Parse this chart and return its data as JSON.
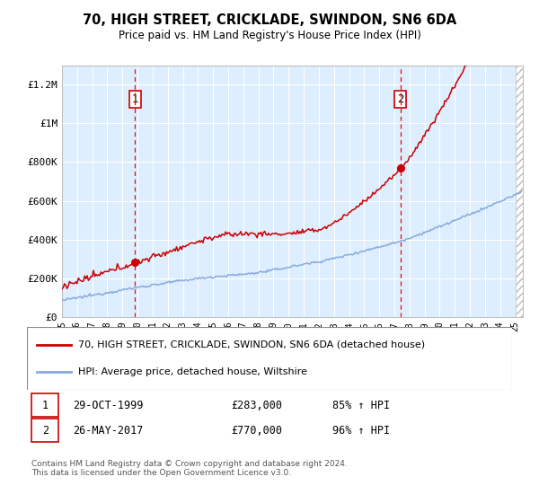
{
  "title": "70, HIGH STREET, CRICKLADE, SWINDON, SN6 6DA",
  "subtitle": "Price paid vs. HM Land Registry's House Price Index (HPI)",
  "ylabel_ticks": [
    "£0",
    "£200K",
    "£400K",
    "£600K",
    "£800K",
    "£1M",
    "£1.2M"
  ],
  "ytick_values": [
    0,
    200000,
    400000,
    600000,
    800000,
    1000000,
    1200000
  ],
  "ylim": [
    0,
    1300000
  ],
  "xlim_start": 1995.0,
  "xlim_end": 2025.5,
  "sale1_x": 1999.83,
  "sale1_y": 283000,
  "sale2_x": 2017.39,
  "sale2_y": 770000,
  "sale1_label": "29-OCT-1999",
  "sale1_price": "£283,000",
  "sale1_hpi": "85% ↑ HPI",
  "sale2_label": "26-MAY-2017",
  "sale2_price": "£770,000",
  "sale2_hpi": "96% ↑ HPI",
  "legend_line1": "70, HIGH STREET, CRICKLADE, SWINDON, SN6 6DA (detached house)",
  "legend_line2": "HPI: Average price, detached house, Wiltshire",
  "footer": "Contains HM Land Registry data © Crown copyright and database right 2024.\nThis data is licensed under the Open Government Licence v3.0.",
  "plot_bg": "#ddeeff",
  "grid_color": "#ffffff",
  "hpi_line_color": "#88aadd",
  "sale_line_color": "#cc0000",
  "vline_color": "#ff0000",
  "marker_box_color": "#cc0000"
}
